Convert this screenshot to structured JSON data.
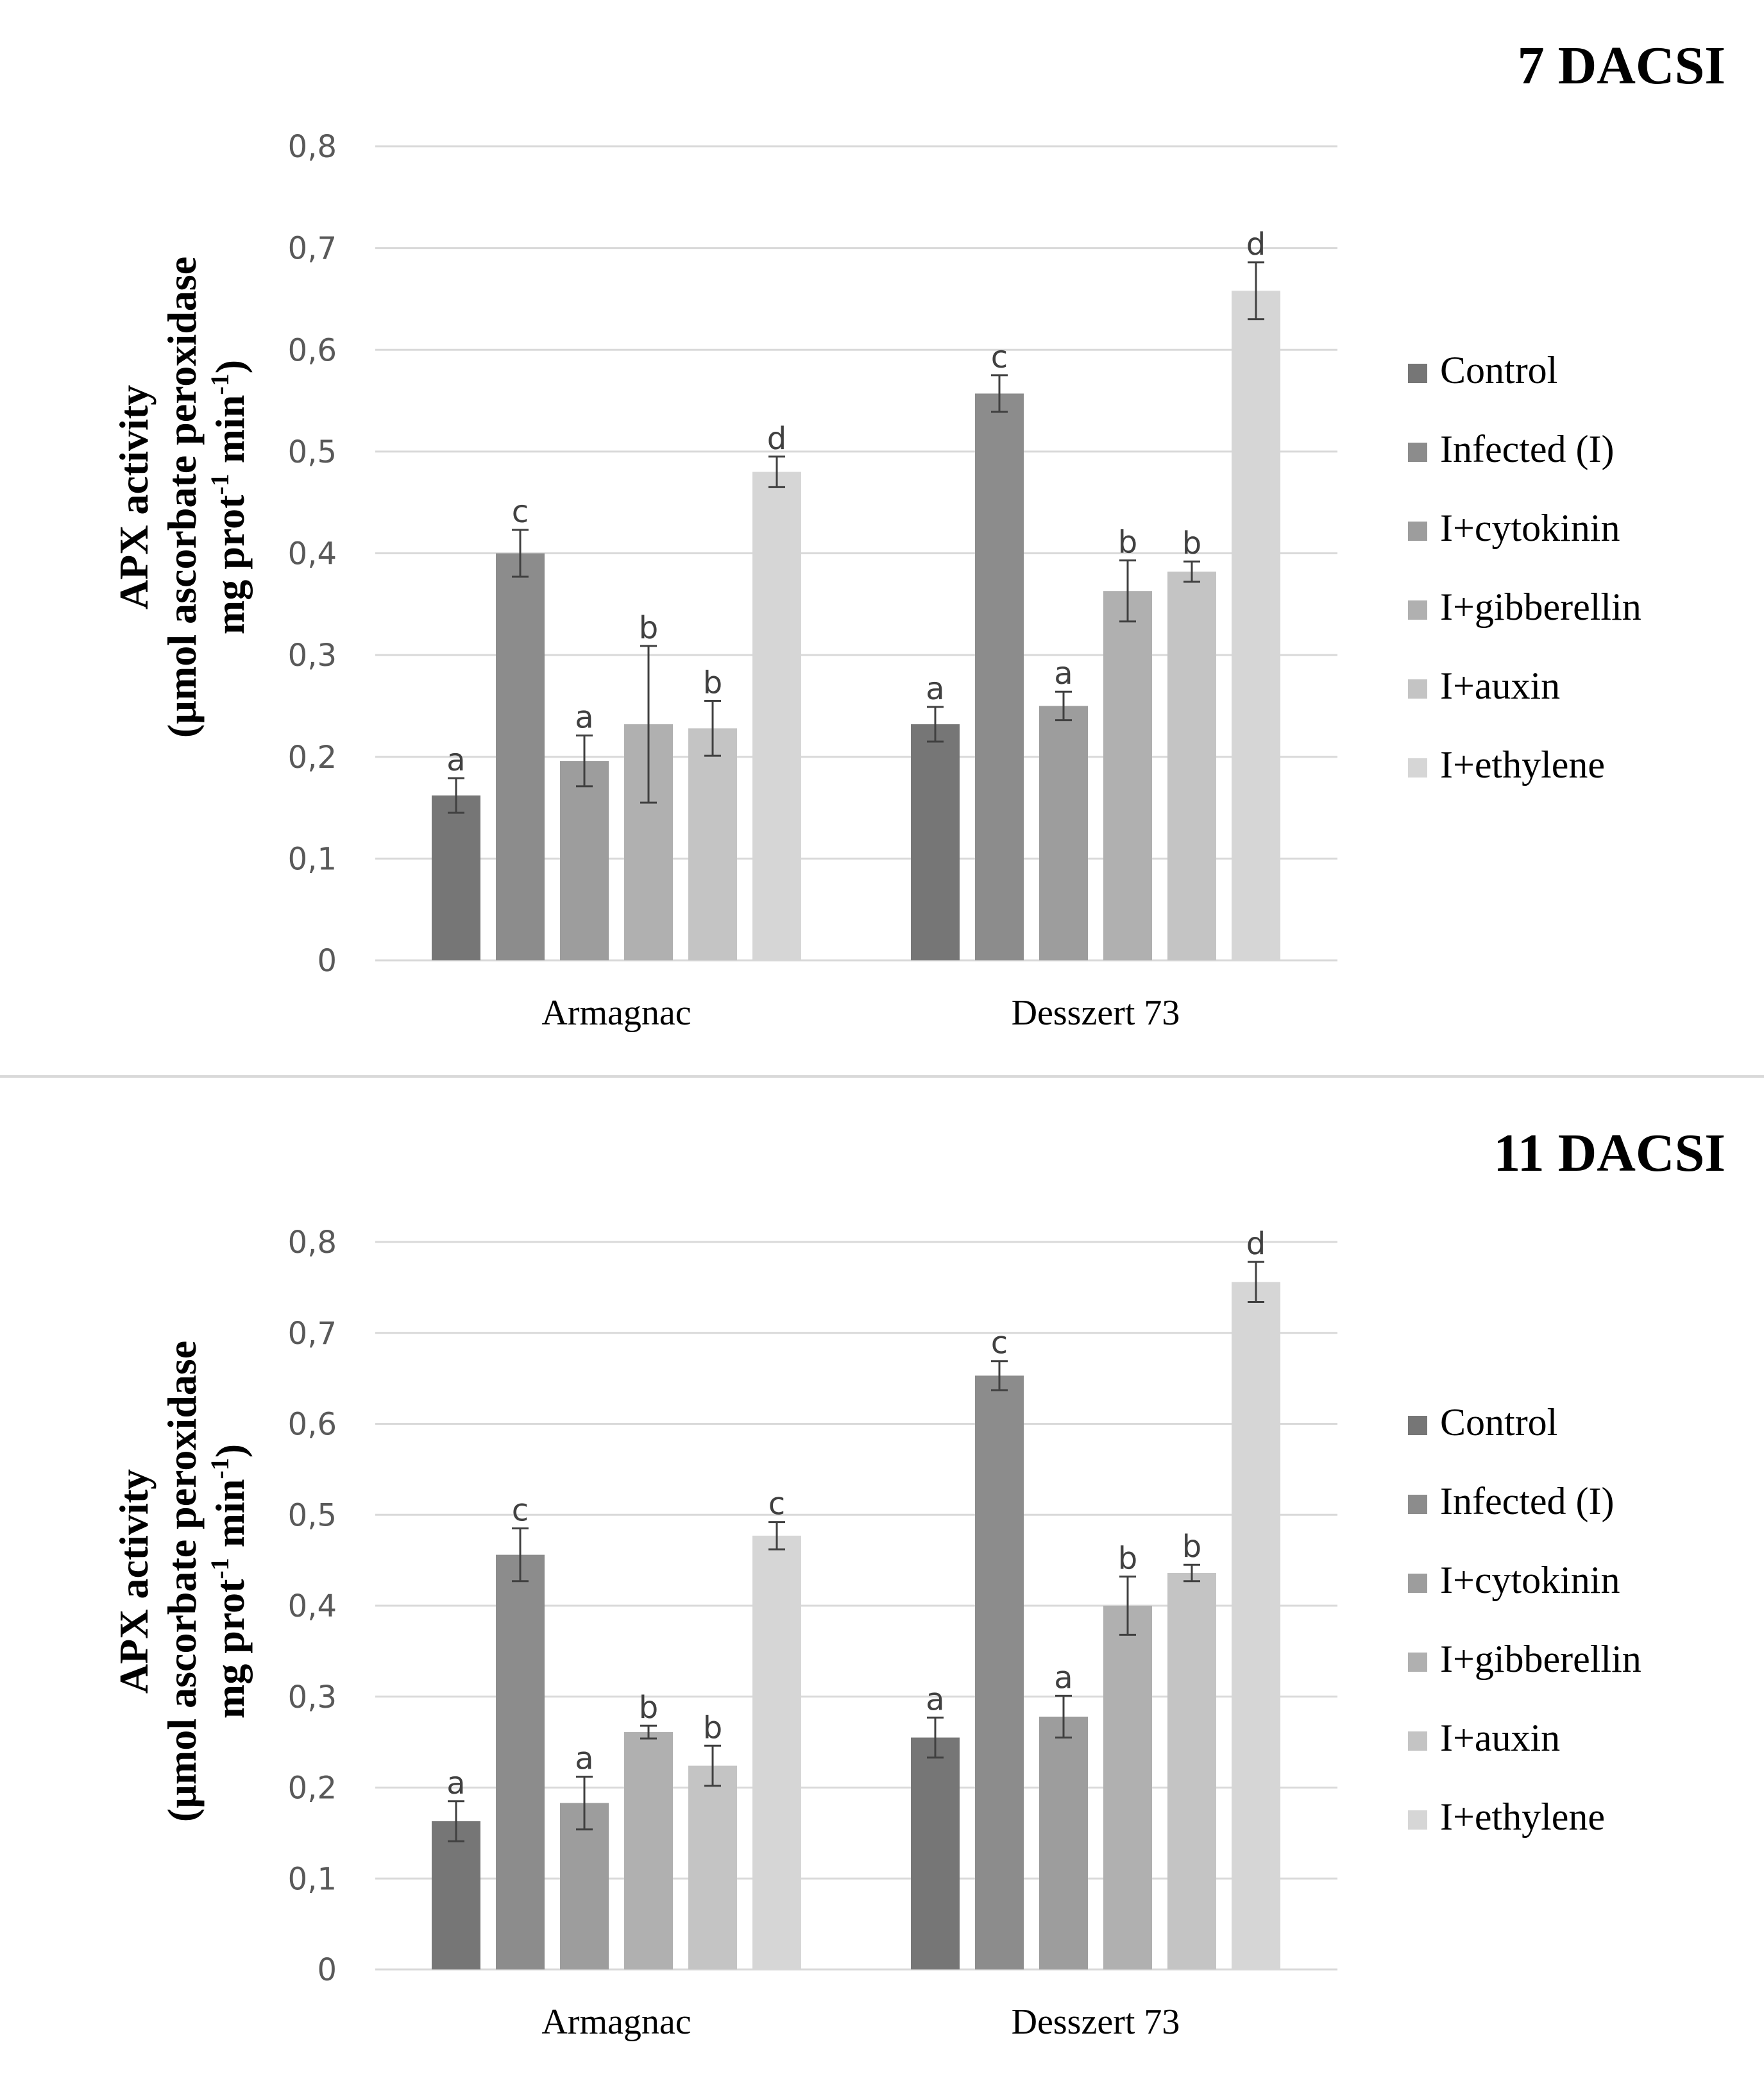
{
  "chart_data": [
    {
      "type": "bar",
      "title": "7 DACSI",
      "ylabel_line1": "APX activity",
      "ylabel_line2a": "(µmol ascorbate peroxidase",
      "ylabel_line3a": "mg prot",
      "ylabel_line3b": "-1",
      "ylabel_line3c": " min",
      "ylabel_line3d": "-1",
      "ylabel_line3e": ")",
      "ylim": [
        0,
        0.8
      ],
      "yticks": [
        0,
        0.1,
        0.2,
        0.3,
        0.4,
        0.5,
        0.6,
        0.7,
        0.8
      ],
      "ytick_labels": [
        "0",
        "0,1",
        "0,2",
        "0,3",
        "0,4",
        "0,5",
        "0,6",
        "0,7",
        "0,8"
      ],
      "categories": [
        "Armagnac",
        "Desszert 73"
      ],
      "series": [
        {
          "name": "Control",
          "values": [
            0.162,
            0.232
          ],
          "errors": [
            0.017,
            0.017
          ],
          "letters": [
            "a",
            "a"
          ]
        },
        {
          "name": "Infected (I)",
          "values": [
            0.4,
            0.557
          ],
          "errors": [
            0.023,
            0.018
          ],
          "letters": [
            "c",
            "c"
          ]
        },
        {
          "name": "I+cytokinin",
          "values": [
            0.196,
            0.25
          ],
          "errors": [
            0.025,
            0.014
          ],
          "letters": [
            "a",
            "a"
          ]
        },
        {
          "name": "I+gibberellin",
          "values": [
            0.232,
            0.363
          ],
          "errors": [
            0.077,
            0.03
          ],
          "letters": [
            "b",
            "b"
          ]
        },
        {
          "name": "I+auxin",
          "values": [
            0.228,
            0.382
          ],
          "errors": [
            0.027,
            0.01
          ],
          "letters": [
            "b",
            "b"
          ]
        },
        {
          "name": "I+ethylene",
          "values": [
            0.48,
            0.658
          ],
          "errors": [
            0.015,
            0.028
          ],
          "letters": [
            "d",
            "d"
          ]
        }
      ],
      "grid": true,
      "legend_position": "right"
    },
    {
      "type": "bar",
      "title": "11 DACSI",
      "ylabel_line1": "APX activity",
      "ylabel_line2a": "(µmol ascorbate peroxidase",
      "ylabel_line3a": "mg prot",
      "ylabel_line3b": "-1",
      "ylabel_line3c": " min",
      "ylabel_line3d": "-1",
      "ylabel_line3e": ")",
      "ylim": [
        0,
        0.8
      ],
      "yticks": [
        0,
        0.1,
        0.2,
        0.3,
        0.4,
        0.5,
        0.6,
        0.7,
        0.8
      ],
      "ytick_labels": [
        "0",
        "0,1",
        "0,2",
        "0,3",
        "0,4",
        "0,5",
        "0,6",
        "0,7",
        "0,8"
      ],
      "categories": [
        "Armagnac",
        "Desszert 73"
      ],
      "series": [
        {
          "name": "Control",
          "values": [
            0.163,
            0.255
          ],
          "errors": [
            0.022,
            0.022
          ],
          "letters": [
            "a",
            "a"
          ]
        },
        {
          "name": "Infected (I)",
          "values": [
            0.456,
            0.653
          ],
          "errors": [
            0.029,
            0.016
          ],
          "letters": [
            "c",
            "c"
          ]
        },
        {
          "name": "I+cytokinin",
          "values": [
            0.183,
            0.278
          ],
          "errors": [
            0.029,
            0.023
          ],
          "letters": [
            "a",
            "a"
          ]
        },
        {
          "name": "I+gibberellin",
          "values": [
            0.261,
            0.4
          ],
          "errors": [
            0.007,
            0.032
          ],
          "letters": [
            "b",
            "b"
          ]
        },
        {
          "name": "I+auxin",
          "values": [
            0.224,
            0.436
          ],
          "errors": [
            0.022,
            0.009
          ],
          "letters": [
            "b",
            "b"
          ]
        },
        {
          "name": "I+ethylene",
          "values": [
            0.477,
            0.756
          ],
          "errors": [
            0.015,
            0.022
          ],
          "letters": [
            "c",
            "d"
          ]
        }
      ],
      "grid": true,
      "legend_position": "right"
    }
  ],
  "colors": {
    "series": [
      "#767676",
      "#8c8c8c",
      "#9d9d9d",
      "#b0b0b0",
      "#c4c4c4",
      "#d6d6d6"
    ],
    "grid": "#d9d9d9",
    "divider": "#d9d9d9",
    "error_bar": "#404040"
  }
}
